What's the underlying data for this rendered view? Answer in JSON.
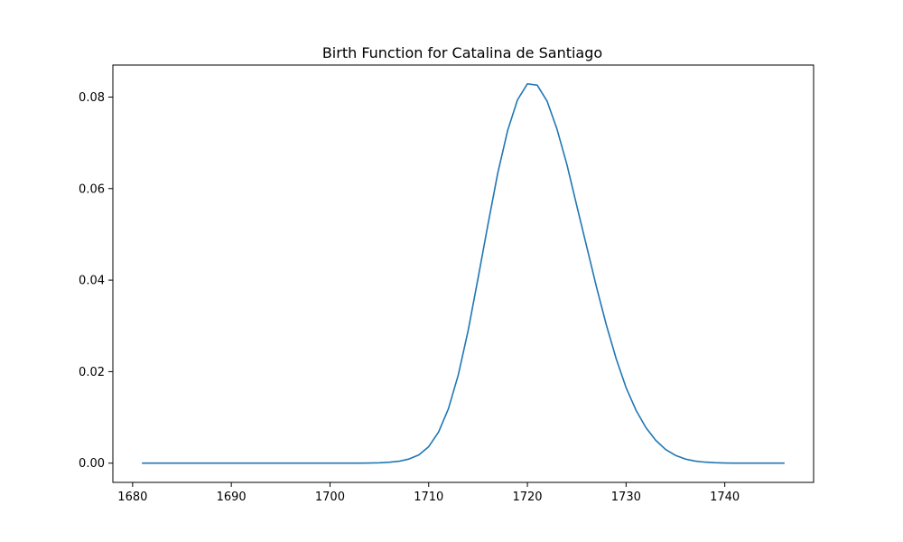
{
  "chart_data": {
    "type": "line",
    "title": "Birth Function for Catalina de Santiago",
    "xlabel": "",
    "ylabel": "",
    "xlim": [
      1678,
      1749
    ],
    "ylim": [
      -0.0042,
      0.087
    ],
    "grid": false,
    "x_ticks": [
      1680,
      1690,
      1700,
      1710,
      1720,
      1730,
      1740
    ],
    "y_ticks": [
      0.0,
      0.02,
      0.04,
      0.06,
      0.08
    ],
    "x_tick_labels": [
      "1680",
      "1690",
      "1700",
      "1710",
      "1720",
      "1730",
      "1740"
    ],
    "y_tick_labels": [
      "0.00",
      "0.02",
      "0.04",
      "0.06",
      "0.08"
    ],
    "series": [
      {
        "color": "#1f77b4",
        "x": [
          1681,
          1682,
          1683,
          1684,
          1685,
          1686,
          1687,
          1688,
          1689,
          1690,
          1691,
          1692,
          1693,
          1694,
          1695,
          1696,
          1697,
          1698,
          1699,
          1700,
          1701,
          1702,
          1703,
          1704,
          1705,
          1706,
          1707,
          1708,
          1709,
          1710,
          1711,
          1712,
          1713,
          1714,
          1715,
          1716,
          1717,
          1718,
          1719,
          1720,
          1721,
          1722,
          1723,
          1724,
          1725,
          1726,
          1727,
          1728,
          1729,
          1730,
          1731,
          1732,
          1733,
          1734,
          1735,
          1736,
          1737,
          1738,
          1739,
          1740,
          1741,
          1742,
          1743,
          1744,
          1745,
          1746
        ],
        "y": [
          0,
          0,
          0,
          0,
          0,
          0,
          0,
          0,
          0,
          0,
          0,
          0,
          0,
          0,
          0,
          0,
          0,
          0,
          0,
          0,
          0,
          0,
          1e-05,
          3e-05,
          8e-05,
          0.0002,
          0.00042,
          0.0009,
          0.0018,
          0.0036,
          0.0068,
          0.0119,
          0.0193,
          0.029,
          0.0404,
          0.0521,
          0.0634,
          0.0727,
          0.0794,
          0.0829,
          0.0826,
          0.0791,
          0.073,
          0.0653,
          0.0563,
          0.0474,
          0.0385,
          0.0302,
          0.0228,
          0.0165,
          0.0116,
          0.0078,
          0.005,
          0.003,
          0.0017,
          0.0009,
          0.00045,
          0.00022,
          0.0001,
          4e-05,
          1e-05,
          0,
          0,
          0,
          0,
          0
        ]
      }
    ]
  }
}
